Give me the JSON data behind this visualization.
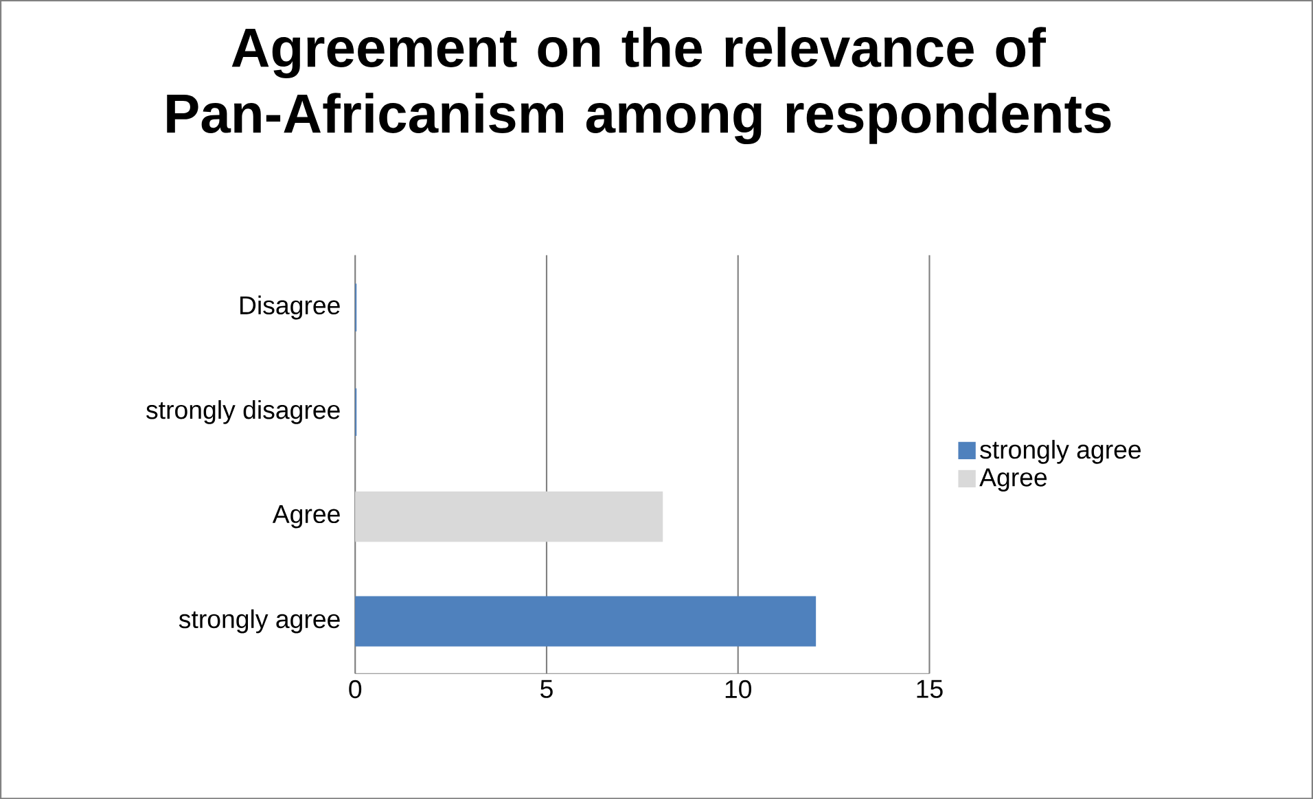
{
  "chart_data": {
    "type": "bar",
    "orientation": "horizontal",
    "title": "Agreement on the relevance of Pan-Africanism among respondents",
    "categories": [
      "Disagree",
      "strongly disagree",
      "Agree",
      "strongly agree"
    ],
    "series": [
      {
        "name": "strongly agree",
        "color": "#4f81bd",
        "values": [
          0,
          0,
          null,
          12
        ]
      },
      {
        "name": "Agree",
        "color": "#d9d9d9",
        "values": [
          null,
          null,
          8,
          null
        ]
      }
    ],
    "xlim": [
      0,
      15
    ],
    "xticks": [
      0,
      5,
      10,
      15
    ],
    "grid": "x",
    "legend": "right"
  }
}
